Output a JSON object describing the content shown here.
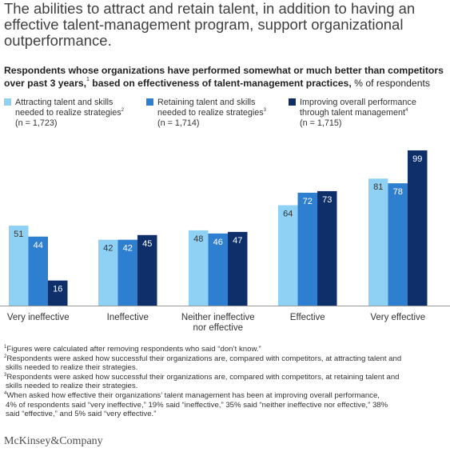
{
  "headline": "The abilities to attract and retain talent, in addition to having an effective talent-management program, support organizational outperformance.",
  "subhead": {
    "bold": "Respondents whose organizations have performed somewhat or much better than competitors over past 3 years,",
    "sup": "1",
    "bold2": " based on effectiveness of talent-management practices,",
    "rest": " % of respondents"
  },
  "legend": [
    {
      "line1": "Attracting talent and skills",
      "line2": "needed to realize strategies",
      "sup": "2",
      "n": "(n = 1,723)",
      "color": "#8fd1f4"
    },
    {
      "line1": "Retaining talent and skills",
      "line2": "needed to realize strategies",
      "sup": "3",
      "n": "(n = 1,714)",
      "color": "#2e7fd0"
    },
    {
      "line1": "Improving overall performance",
      "line2": "through talent management",
      "sup": "4",
      "n": "(n = 1,715)",
      "color": "#0f2f6b"
    }
  ],
  "chart_data": {
    "type": "bar",
    "categories": [
      "Very ineffective",
      "Ineffective",
      "Neither ineffective nor effective",
      "Effective",
      "Very effective"
    ],
    "category_lines": [
      [
        "Very ineffective"
      ],
      [
        "Ineffective"
      ],
      [
        "Neither ineffective",
        "nor effective"
      ],
      [
        "Effective"
      ],
      [
        "Very effective"
      ]
    ],
    "series": [
      {
        "name": "Attracting talent and skills needed to realize strategies",
        "values": [
          51,
          42,
          48,
          64,
          81
        ],
        "color": "#8fd1f4",
        "label_color": "#333333"
      },
      {
        "name": "Retaining talent and skills needed to realize strategies",
        "values": [
          44,
          42,
          46,
          72,
          78
        ],
        "color": "#2e7fd0",
        "label_color": "#ffffff"
      },
      {
        "name": "Improving overall performance through talent management",
        "values": [
          16,
          45,
          47,
          73,
          99
        ],
        "color": "#0f2f6b",
        "label_color": "#ffffff"
      }
    ],
    "ylim": [
      0,
      100
    ],
    "grid": false,
    "legend_position": "top"
  },
  "footnotes": [
    {
      "sup": "1",
      "lines": [
        "Figures were calculated after removing respondents who said “don’t know.”"
      ]
    },
    {
      "sup": "2",
      "lines": [
        "Respondents were asked how successful their organizations are, compared with competitors, at attracting talent and",
        "skills needed to realize their strategies."
      ]
    },
    {
      "sup": "3",
      "lines": [
        "Respondents were asked how successful their organizations are, compared with competitors, at retaining talent and",
        "skills needed to realize their strategies."
      ]
    },
    {
      "sup": "4",
      "lines": [
        "When asked how effective their organizations’ talent management has been at improving overall performance,",
        "4% of respondents said “very ineffective,” 19% said “ineffective,” 35% said “neither ineffective nor effective,” 38%",
        "said “effective,” and 5% said “very effective.”"
      ]
    }
  ],
  "brand": "McKinsey&Company"
}
